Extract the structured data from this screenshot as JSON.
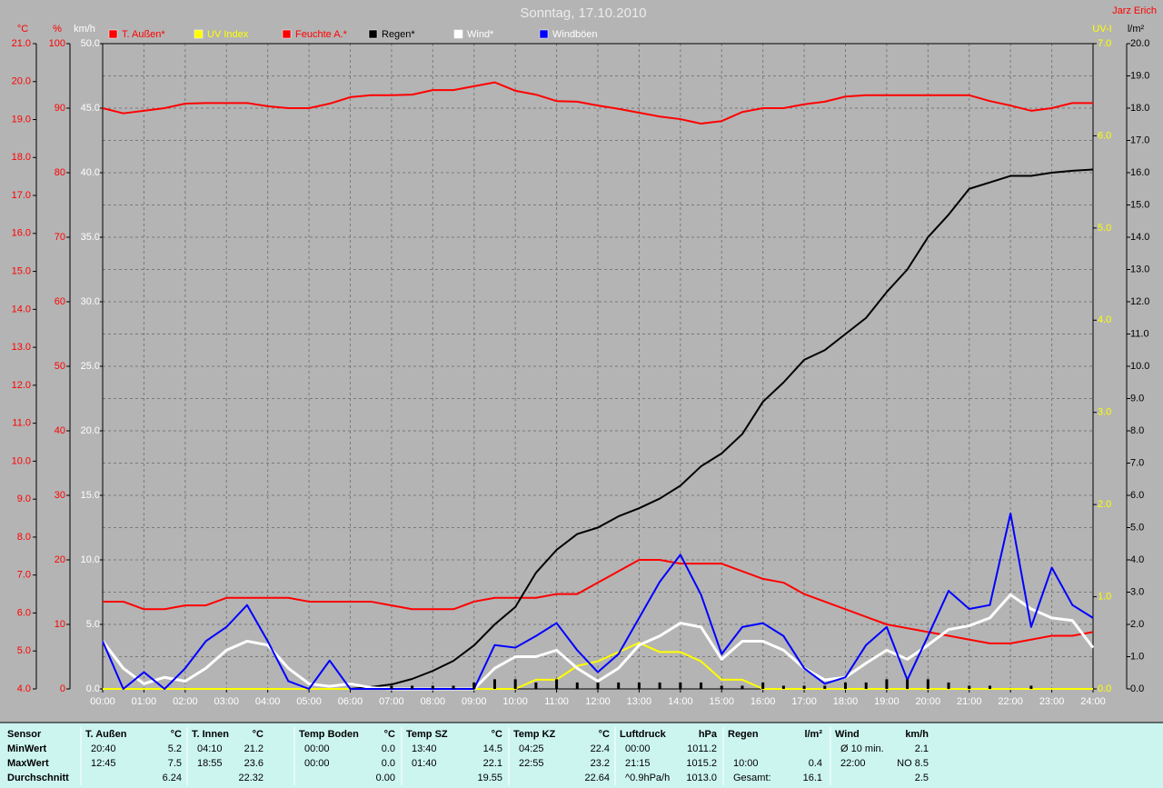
{
  "chart_data": {
    "type": "line",
    "title": "Sonntag, 17.10.2010",
    "annotation": "Jarz Erich",
    "x": [
      0,
      0.5,
      1,
      1.5,
      2,
      2.5,
      3,
      3.5,
      4,
      4.5,
      5,
      5.5,
      6,
      6.5,
      7,
      7.5,
      8,
      8.5,
      9,
      9.5,
      10,
      10.5,
      11,
      11.5,
      12,
      12.5,
      13,
      13.5,
      14,
      14.5,
      15,
      15.5,
      16,
      16.5,
      17,
      17.5,
      18,
      18.5,
      19,
      19.5,
      20,
      20.5,
      21,
      21.5,
      22,
      22.5,
      23,
      23.5,
      24
    ],
    "xlim": [
      0,
      24
    ],
    "xticks": [
      {
        "value": 0,
        "label": "00:00"
      },
      {
        "value": 1,
        "label": "01:00"
      },
      {
        "value": 2,
        "label": "02:00"
      },
      {
        "value": 3,
        "label": "03:00"
      },
      {
        "value": 4,
        "label": "04:00"
      },
      {
        "value": 5,
        "label": "05:00"
      },
      {
        "value": 6,
        "label": "06:00"
      },
      {
        "value": 7,
        "label": "07:00"
      },
      {
        "value": 8,
        "label": "08:00"
      },
      {
        "value": 9,
        "label": "09:00"
      },
      {
        "value": 10,
        "label": "10:00"
      },
      {
        "value": 11,
        "label": "11:00"
      },
      {
        "value": 12,
        "label": "12:00"
      },
      {
        "value": 13,
        "label": "13:00"
      },
      {
        "value": 14,
        "label": "14:00"
      },
      {
        "value": 15,
        "label": "15:00"
      },
      {
        "value": 16,
        "label": "16:00"
      },
      {
        "value": 17,
        "label": "17:00"
      },
      {
        "value": 18,
        "label": "18:00"
      },
      {
        "value": 19,
        "label": "19:00"
      },
      {
        "value": 20,
        "label": "20:00"
      },
      {
        "value": 21,
        "label": "21:00"
      },
      {
        "value": 22,
        "label": "22:00"
      },
      {
        "value": 23,
        "label": "23:00"
      },
      {
        "value": 24,
        "label": "24:00"
      }
    ],
    "xgrid": true,
    "y_axes": [
      {
        "label": "°C",
        "side": "left",
        "color": "#ff0000",
        "grid": false,
        "lim": [
          4,
          21
        ],
        "ticks": [
          {
            "value": 4,
            "label": "4.0"
          },
          {
            "value": 5,
            "label": "5.0"
          },
          {
            "value": 6,
            "label": "6.0"
          },
          {
            "value": 7,
            "label": "7.0"
          },
          {
            "value": 8,
            "label": "8.0"
          },
          {
            "value": 9,
            "label": "9.0"
          },
          {
            "value": 10,
            "label": "10.0"
          },
          {
            "value": 11,
            "label": "11.0"
          },
          {
            "value": 12,
            "label": "12.0"
          },
          {
            "value": 13,
            "label": "13.0"
          },
          {
            "value": 14,
            "label": "14.0"
          },
          {
            "value": 15,
            "label": "15.0"
          },
          {
            "value": 16,
            "label": "16.0"
          },
          {
            "value": 17,
            "label": "17.0"
          },
          {
            "value": 18,
            "label": "18.0"
          },
          {
            "value": 19,
            "label": "19.0"
          },
          {
            "value": 20,
            "label": "20.0"
          },
          {
            "value": 21,
            "label": "21.0"
          }
        ]
      },
      {
        "label": "%",
        "side": "left",
        "color": "#ff0000",
        "grid": false,
        "lim": [
          0,
          100
        ],
        "ticks": [
          0,
          10,
          20,
          30,
          40,
          50,
          60,
          70,
          80,
          90,
          100
        ]
      },
      {
        "label": "km/h",
        "side": "left",
        "color": "#ffffff",
        "grid": false,
        "lim": [
          0,
          50
        ],
        "ticks": [
          {
            "value": 0,
            "label": "0.0"
          },
          {
            "value": 5,
            "label": "5.0"
          },
          {
            "value": 10,
            "label": "10.0"
          },
          {
            "value": 15,
            "label": "15.0"
          },
          {
            "value": 20,
            "label": "20.0"
          },
          {
            "value": 25,
            "label": "25.0"
          },
          {
            "value": 30,
            "label": "30.0"
          },
          {
            "value": 35,
            "label": "35.0"
          },
          {
            "value": 40,
            "label": "40.0"
          },
          {
            "value": 45,
            "label": "45.0"
          },
          {
            "value": 50,
            "label": "50.0"
          }
        ]
      },
      {
        "label": "UV-I",
        "side": "right",
        "color": "#ffff00",
        "grid": false,
        "lim": [
          0,
          7
        ],
        "ticks": [
          {
            "value": 0,
            "label": "0.0"
          },
          {
            "value": 1,
            "label": "1.0"
          },
          {
            "value": 2,
            "label": "2.0"
          },
          {
            "value": 3,
            "label": "3.0"
          },
          {
            "value": 4,
            "label": "4.0"
          },
          {
            "value": 5,
            "label": "5.0"
          },
          {
            "value": 6,
            "label": "6.0"
          },
          {
            "value": 7,
            "label": "7.0"
          }
        ]
      },
      {
        "label": "l/m²",
        "side": "right",
        "color": "#000000",
        "grid": true,
        "lim": [
          0,
          20
        ],
        "ticks": [
          {
            "value": 0,
            "label": "0.0"
          },
          {
            "value": 1,
            "label": "1.0"
          },
          {
            "value": 2,
            "label": "2.0"
          },
          {
            "value": 3,
            "label": "3.0"
          },
          {
            "value": 4,
            "label": "4.0"
          },
          {
            "value": 5,
            "label": "5.0"
          },
          {
            "value": 6,
            "label": "6.0"
          },
          {
            "value": 7,
            "label": "7.0"
          },
          {
            "value": 8,
            "label": "8.0"
          },
          {
            "value": 9,
            "label": "9.0"
          },
          {
            "value": 10,
            "label": "10.0"
          },
          {
            "value": 11,
            "label": "11.0"
          },
          {
            "value": 12,
            "label": "12.0"
          },
          {
            "value": 13,
            "label": "13.0"
          },
          {
            "value": 14,
            "label": "14.0"
          },
          {
            "value": 15,
            "label": "15.0"
          },
          {
            "value": 16,
            "label": "16.0"
          },
          {
            "value": 17,
            "label": "17.0"
          },
          {
            "value": 18,
            "label": "18.0"
          },
          {
            "value": 19,
            "label": "19.0"
          },
          {
            "value": 20,
            "label": "20.0"
          }
        ]
      }
    ],
    "series": [
      {
        "name": "T. Außen*",
        "type": "line",
        "axis": "°C",
        "color": "#ff0000",
        "label_color": "#ff0000",
        "values": [
          6.3,
          6.3,
          6.1,
          6.1,
          6.2,
          6.2,
          6.4,
          6.4,
          6.4,
          6.4,
          6.3,
          6.3,
          6.3,
          6.3,
          6.2,
          6.1,
          6.1,
          6.1,
          6.3,
          6.4,
          6.4,
          6.4,
          6.5,
          6.5,
          6.8,
          7.1,
          7.4,
          7.4,
          7.3,
          7.3,
          7.3,
          7.1,
          6.9,
          6.8,
          6.5,
          6.3,
          6.1,
          5.9,
          5.7,
          5.6,
          5.5,
          5.4,
          5.3,
          5.2,
          5.2,
          5.3,
          5.4,
          5.4,
          5.5
        ]
      },
      {
        "name": "UV Index",
        "type": "line",
        "axis": "UV-I",
        "color": "#ffff00",
        "label_color": "#ffff00",
        "values": [
          0,
          0,
          0,
          0,
          0,
          0,
          0,
          0,
          0,
          0,
          0,
          0,
          0,
          0,
          0,
          0,
          0,
          0,
          0,
          0,
          0,
          0.1,
          0.1,
          0.25,
          0.3,
          0.4,
          0.5,
          0.4,
          0.4,
          0.3,
          0.1,
          0.1,
          0,
          0,
          0,
          0,
          0,
          0,
          0,
          0,
          0,
          0,
          0,
          0,
          0,
          0,
          0,
          0,
          0
        ]
      },
      {
        "name": "Feuchte A.*",
        "type": "line",
        "axis": "%",
        "color": "#ff0000",
        "label_color": "#ff0000",
        "values": [
          90,
          89.2,
          89.6,
          90,
          90.7,
          90.8,
          90.8,
          90.8,
          90.3,
          90,
          90,
          90.7,
          91.7,
          92,
          92,
          92.1,
          92.8,
          92.8,
          93.4,
          94,
          92.7,
          92.1,
          91.1,
          91,
          90.4,
          89.9,
          89.3,
          88.7,
          88.3,
          87.6,
          88,
          89.4,
          90,
          90,
          90.6,
          91,
          91.8,
          92,
          92,
          92,
          92,
          92,
          92,
          91.1,
          90.4,
          89.6,
          90,
          90.8,
          90.8
        ]
      },
      {
        "name": "Regen*",
        "type": "line",
        "axis": "l/m²",
        "color": "#000000",
        "label_color": "#000000",
        "values": [
          null,
          null,
          null,
          null,
          null,
          null,
          null,
          null,
          null,
          null,
          null,
          null,
          0,
          0.06,
          0.14,
          0.31,
          0.56,
          0.87,
          1.35,
          2.0,
          2.54,
          3.6,
          4.31,
          4.8,
          5.0,
          5.35,
          5.6,
          5.9,
          6.3,
          6.9,
          7.3,
          7.9,
          8.9,
          9.5,
          10.2,
          10.5,
          11.0,
          11.5,
          12.3,
          13.0,
          14.0,
          14.7,
          15.5,
          15.7,
          15.9,
          15.9,
          16.0,
          16.06,
          16.1
        ]
      },
      {
        "name": "Wind*",
        "type": "line",
        "axis": "km/h",
        "color": "#ffffff",
        "label_color": "#ffffff",
        "values": [
          3.7,
          1.6,
          0.4,
          0.9,
          0.6,
          1.6,
          3.0,
          3.7,
          3.4,
          1.6,
          0.4,
          0.2,
          0.4,
          0.1,
          0,
          0,
          0,
          0,
          0,
          1.6,
          2.5,
          2.5,
          3.0,
          1.6,
          0.6,
          1.6,
          3.4,
          4.1,
          5.1,
          4.8,
          2.3,
          3.7,
          3.7,
          3.0,
          1.6,
          0.7,
          0.9,
          2.0,
          3.0,
          2.3,
          3.4,
          4.6,
          4.9,
          5.5,
          7.3,
          6.2,
          5.5,
          5.3,
          3.2
        ]
      },
      {
        "name": "Windböen",
        "type": "line",
        "axis": "km/h",
        "color": "#0000ff",
        "label_color": "#ffffff",
        "values": [
          3.7,
          0,
          1.3,
          0,
          1.6,
          3.7,
          4.8,
          6.5,
          3.7,
          0.6,
          0,
          2.2,
          0,
          0,
          0,
          0,
          0,
          0,
          0,
          3.4,
          3.2,
          4.1,
          5.1,
          3.0,
          1.3,
          2.7,
          5.5,
          8.3,
          10.4,
          7.3,
          2.7,
          4.8,
          5.1,
          4.1,
          1.6,
          0.4,
          0.9,
          3.4,
          4.8,
          0.7,
          4.1,
          7.6,
          6.2,
          6.5,
          13.6,
          4.8,
          9.4,
          6.5,
          5.5
        ]
      },
      {
        "type": "bar",
        "axis": "l/m²",
        "color": "#000000",
        "values": [
          null,
          null,
          null,
          null,
          null,
          null,
          null,
          null,
          null,
          null,
          null,
          null,
          null,
          null,
          0.1,
          0.1,
          0.1,
          0.1,
          0.2,
          0.3,
          0.3,
          0.2,
          0.3,
          0.2,
          0.2,
          0.2,
          0.2,
          0.2,
          0.2,
          0.2,
          0.1,
          0.1,
          0.2,
          0.1,
          0.1,
          0.1,
          0.2,
          0.2,
          0.3,
          0.3,
          0.3,
          0.2,
          0.1,
          0.1,
          null,
          0.1,
          null,
          null,
          null
        ]
      }
    ]
  },
  "table": {
    "row_labels": [
      "Sensor",
      "MinWert",
      "MaxWert",
      "Durchschnitt"
    ],
    "groups": [
      {
        "name": "T. Außen",
        "unit": "°C",
        "rows": [
          [
            "20:40",
            "5.2"
          ],
          [
            "12:45",
            "7.5"
          ],
          [
            null,
            "6.24"
          ]
        ]
      },
      {
        "name": "T. Innen",
        "unit": "°C",
        "rows": [
          [
            "04:10",
            "21.2"
          ],
          [
            "18:55",
            "23.6"
          ],
          [
            null,
            "22.32"
          ]
        ]
      },
      {
        "name": "Temp Boden",
        "unit": "°C",
        "rows": [
          [
            "00:00",
            "0.0"
          ],
          [
            "00:00",
            "0.0"
          ],
          [
            null,
            "0.00"
          ]
        ]
      },
      {
        "name": "Temp SZ",
        "unit": "°C",
        "rows": [
          [
            "13:40",
            "14.5"
          ],
          [
            "01:40",
            "22.1"
          ],
          [
            null,
            "19.55"
          ]
        ]
      },
      {
        "name": "Temp KZ",
        "unit": "°C",
        "rows": [
          [
            "04:25",
            "22.4"
          ],
          [
            "22:55",
            "23.2"
          ],
          [
            null,
            "22.64"
          ]
        ]
      },
      {
        "name": "Luftdruck",
        "unit": "hPa",
        "rows": [
          [
            "00:00",
            "1011.2"
          ],
          [
            "21:15",
            "1015.2"
          ],
          [
            "^0.9hPa/h",
            "1013.0"
          ]
        ]
      },
      {
        "name": "Regen",
        "unit": "l/m²",
        "rows": [
          [
            null,
            null
          ],
          [
            "10:00",
            "0.4"
          ],
          [
            "Gesamt:",
            "16.1"
          ]
        ]
      },
      {
        "name": "Wind",
        "unit": "km/h",
        "rows": [
          [
            "Ø 10 min.",
            "2.1"
          ],
          [
            "22:00",
            "NO 8.5"
          ],
          [
            null,
            "2.5"
          ]
        ]
      }
    ]
  }
}
